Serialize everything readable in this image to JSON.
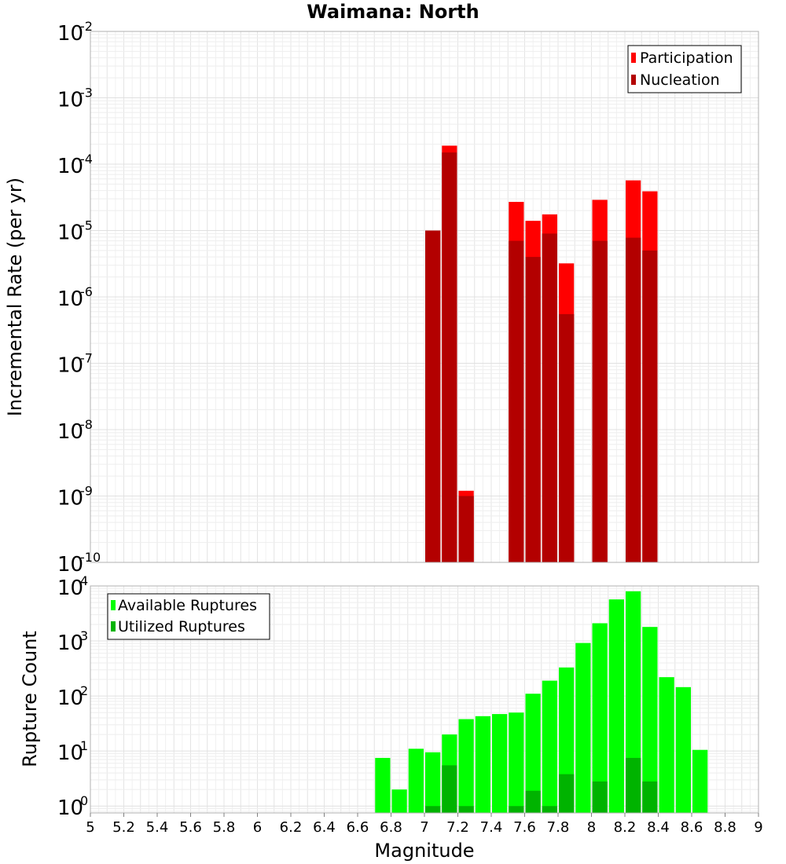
{
  "chart_data": [
    {
      "type": "bar",
      "title": "Waimana: North",
      "xlabel": "",
      "ylabel": "Incremental Rate (per yr)",
      "yscale": "log",
      "ylim": [
        1e-10,
        0.01
      ],
      "xlim": [
        5,
        9
      ],
      "grid": true,
      "legend_position": "top-right",
      "y_tick_bases": [
        "10",
        "10",
        "10",
        "10",
        "10",
        "10",
        "10",
        "10",
        "10"
      ],
      "y_tick_exponents": [
        "-10",
        "-9",
        "-8",
        "-7",
        "-6",
        "-5",
        "-4",
        "-3",
        "-2"
      ],
      "series": [
        {
          "name": "Participation",
          "color": "#ff0000",
          "points": [
            {
              "x": 7.0,
              "y": 1e-05
            },
            {
              "x": 7.1,
              "y": 0.00019
            },
            {
              "x": 7.2,
              "y": 1.2e-09
            },
            {
              "x": 7.5,
              "y": 2.7e-05
            },
            {
              "x": 7.6,
              "y": 1.4e-05
            },
            {
              "x": 7.7,
              "y": 1.75e-05
            },
            {
              "x": 7.8,
              "y": 3.2e-06
            },
            {
              "x": 8.0,
              "y": 2.9e-05
            },
            {
              "x": 8.2,
              "y": 5.7e-05
            },
            {
              "x": 8.3,
              "y": 3.9e-05
            }
          ]
        },
        {
          "name": "Nucleation",
          "color": "#b30000",
          "points": [
            {
              "x": 7.0,
              "y": 1e-05
            },
            {
              "x": 7.1,
              "y": 0.00015
            },
            {
              "x": 7.2,
              "y": 1e-09
            },
            {
              "x": 7.5,
              "y": 7e-06
            },
            {
              "x": 7.6,
              "y": 4e-06
            },
            {
              "x": 7.7,
              "y": 9e-06
            },
            {
              "x": 7.8,
              "y": 5.5e-07
            },
            {
              "x": 8.0,
              "y": 7e-06
            },
            {
              "x": 8.2,
              "y": 7.8e-06
            },
            {
              "x": 8.3,
              "y": 5e-06
            }
          ]
        }
      ]
    },
    {
      "type": "bar",
      "title": "",
      "xlabel": "Magnitude",
      "ylabel": "Rupture Count",
      "yscale": "log",
      "ylim": [
        0.75,
        10000
      ],
      "xlim": [
        5,
        9
      ],
      "grid": true,
      "legend_position": "top-left",
      "x_tick_labels": [
        "5",
        "5.2",
        "5.4",
        "5.6",
        "5.8",
        "6",
        "6.2",
        "6.4",
        "6.6",
        "6.8",
        "7",
        "7.2",
        "7.4",
        "7.6",
        "7.8",
        "8",
        "8.2",
        "8.4",
        "8.6",
        "8.8",
        "9"
      ],
      "y_tick_bases": [
        "10",
        "10",
        "10",
        "10",
        "10"
      ],
      "y_tick_exponents": [
        "0",
        "1",
        "2",
        "3",
        "4"
      ],
      "series": [
        {
          "name": "Available Ruptures",
          "color": "#00ff00",
          "points": [
            {
              "x": 6.7,
              "y": 7.5
            },
            {
              "x": 6.8,
              "y": 2
            },
            {
              "x": 6.9,
              "y": 11
            },
            {
              "x": 7.0,
              "y": 9.5
            },
            {
              "x": 7.1,
              "y": 20
            },
            {
              "x": 7.2,
              "y": 38
            },
            {
              "x": 7.3,
              "y": 43
            },
            {
              "x": 7.4,
              "y": 47
            },
            {
              "x": 7.5,
              "y": 50
            },
            {
              "x": 7.6,
              "y": 110
            },
            {
              "x": 7.7,
              "y": 190
            },
            {
              "x": 7.8,
              "y": 330
            },
            {
              "x": 7.9,
              "y": 920
            },
            {
              "x": 8.0,
              "y": 2100
            },
            {
              "x": 8.1,
              "y": 5700
            },
            {
              "x": 8.2,
              "y": 8000
            },
            {
              "x": 8.3,
              "y": 1800
            },
            {
              "x": 8.4,
              "y": 220
            },
            {
              "x": 8.5,
              "y": 145
            },
            {
              "x": 8.6,
              "y": 10.5
            }
          ]
        },
        {
          "name": "Utilized Ruptures",
          "color": "#00b300",
          "points": [
            {
              "x": 7.0,
              "y": 1
            },
            {
              "x": 7.1,
              "y": 5.5
            },
            {
              "x": 7.2,
              "y": 1
            },
            {
              "x": 7.5,
              "y": 1
            },
            {
              "x": 7.6,
              "y": 1.9
            },
            {
              "x": 7.7,
              "y": 1
            },
            {
              "x": 7.8,
              "y": 3.8
            },
            {
              "x": 8.0,
              "y": 2.8
            },
            {
              "x": 8.2,
              "y": 7.5
            },
            {
              "x": 8.3,
              "y": 2.8
            }
          ]
        }
      ]
    }
  ]
}
